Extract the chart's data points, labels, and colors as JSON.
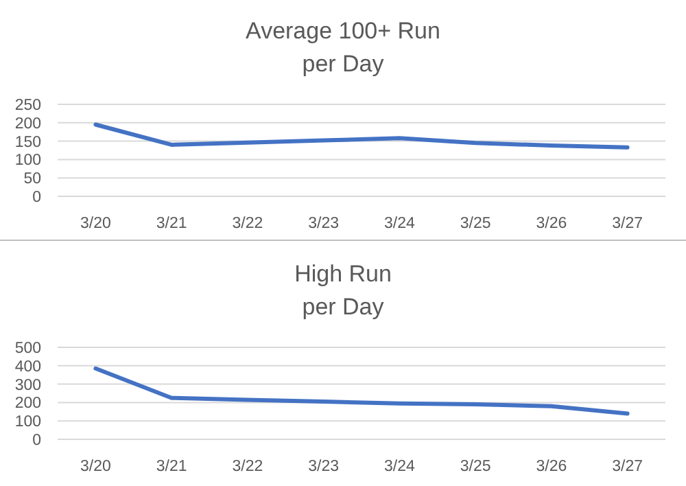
{
  "chart_data": [
    {
      "type": "line",
      "title": "Average 100+ Run\nper Day",
      "categories": [
        "3/20",
        "3/21",
        "3/22",
        "3/23",
        "3/24",
        "3/25",
        "3/26",
        "3/27"
      ],
      "series": [
        {
          "color": "#4472c4",
          "values": [
            195,
            140,
            146,
            152,
            158,
            145,
            138,
            133
          ]
        }
      ],
      "ylim": [
        0,
        250
      ],
      "yticks": [
        0,
        50,
        100,
        150,
        200,
        250
      ],
      "grid": "y"
    },
    {
      "type": "line",
      "title": "High Run\nper Day",
      "categories": [
        "3/20",
        "3/21",
        "3/22",
        "3/23",
        "3/24",
        "3/25",
        "3/26",
        "3/27"
      ],
      "series": [
        {
          "color": "#4472c4",
          "values": [
            385,
            225,
            215,
            205,
            195,
            190,
            180,
            140
          ]
        }
      ],
      "ylim": [
        0,
        500
      ],
      "yticks": [
        0,
        100,
        200,
        300,
        400,
        500
      ],
      "grid": "y"
    }
  ]
}
